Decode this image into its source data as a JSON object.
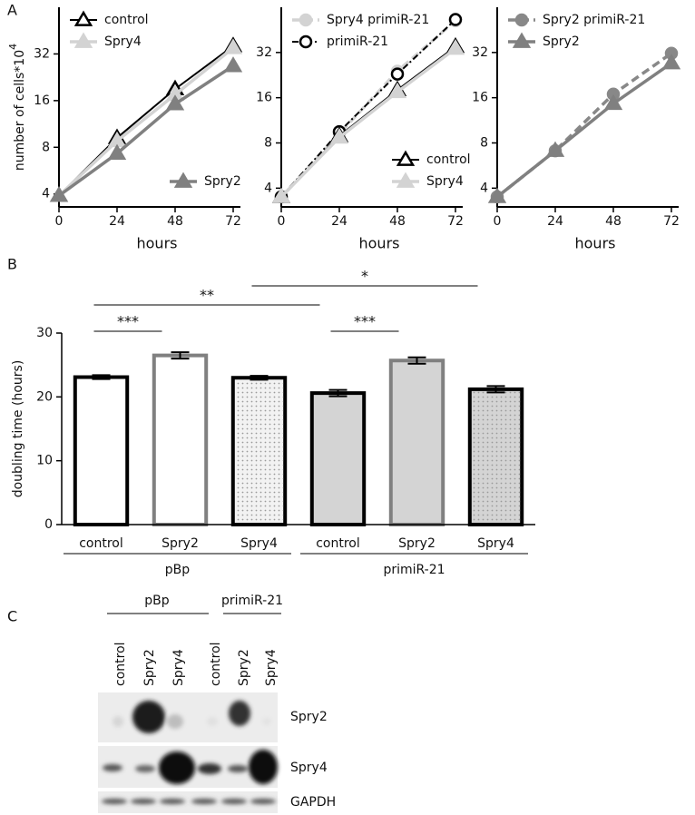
{
  "panel_labels": [
    "A",
    "B",
    "C"
  ],
  "chart_data": [
    {
      "type": "line",
      "x": [
        0,
        24,
        48,
        72
      ],
      "xlim": [
        0,
        75
      ],
      "xticks": [
        0,
        24,
        48,
        72
      ],
      "xlabel": "hours",
      "ylabel": "number of cells*10",
      "ylabel_superscript": "4",
      "yscale": "log",
      "ylim": [
        3.3,
        64
      ],
      "yticks": [
        4,
        8,
        16,
        32
      ],
      "series": [
        {
          "name": "control",
          "color": "#000000",
          "marker": "triangle",
          "filled": false,
          "linestyle": "solid",
          "legend": "upper left",
          "values": [
            3.9,
            9.2,
            19,
            36
          ]
        },
        {
          "name": "Spry4",
          "color": "#d3d3d3",
          "marker": "triangle",
          "filled": true,
          "linestyle": "solid",
          "legend": "upper left",
          "values": [
            3.9,
            8.8,
            17.5,
            35
          ]
        },
        {
          "name": "Spry2",
          "color": "#808080",
          "marker": "triangle",
          "filled": true,
          "linestyle": "solid",
          "legend": "lower right",
          "values": [
            3.9,
            7.3,
            15.2,
            26.8
          ]
        }
      ]
    },
    {
      "type": "line",
      "x": [
        0,
        24,
        48,
        72
      ],
      "xlim": [
        0,
        75
      ],
      "xticks": [
        0,
        24,
        48,
        72
      ],
      "xlabel": "hours",
      "yscale": "log",
      "ylim": [
        3,
        64
      ],
      "yticks": [
        4,
        8,
        16,
        32
      ],
      "series": [
        {
          "name": "Spry4 primiR-21",
          "color": "#d3d3d3",
          "marker": "circle",
          "filled": true,
          "linestyle": "dashed",
          "legend": "upper left",
          "values": [
            3.5,
            9.2,
            24,
            52
          ]
        },
        {
          "name": "primiR-21",
          "color": "#000000",
          "marker": "circle",
          "filled": false,
          "linestyle": "dashdot",
          "legend": "upper left",
          "values": [
            3.5,
            9.5,
            23,
            53
          ]
        },
        {
          "name": "control",
          "color": "#000000",
          "marker": "triangle",
          "filled": false,
          "linestyle": "solid",
          "legend": "lower right",
          "values": [
            3.5,
            8.9,
            18,
            35
          ]
        },
        {
          "name": "Spry4",
          "color": "#d3d3d3",
          "marker": "triangle",
          "filled": true,
          "linestyle": "solid",
          "legend": "lower right",
          "values": [
            3.5,
            8.7,
            17.5,
            34
          ]
        }
      ]
    },
    {
      "type": "line",
      "x": [
        0,
        24,
        48,
        72
      ],
      "xlim": [
        0,
        75
      ],
      "xticks": [
        0,
        24,
        48,
        72
      ],
      "xlabel": "hours",
      "yscale": "log",
      "ylim": [
        3,
        64
      ],
      "yticks": [
        4,
        8,
        16,
        32
      ],
      "series": [
        {
          "name": "Spry2 primiR-21",
          "color": "#888888",
          "marker": "circle",
          "filled": true,
          "linestyle": "dashed",
          "legend": "upper left",
          "values": [
            3.5,
            7.1,
            16.9,
            31.6
          ]
        },
        {
          "name": "Spry2",
          "color": "#808080",
          "marker": "triangle",
          "filled": true,
          "linestyle": "solid",
          "legend": "upper left",
          "values": [
            3.5,
            7.1,
            14.6,
            27.2
          ]
        }
      ]
    },
    {
      "type": "bar",
      "categories": [
        "control",
        "Spry2",
        "Spry4",
        "control",
        "Spry2",
        "Spry4"
      ],
      "groups": [
        "pBp",
        "primiR-21"
      ],
      "values": [
        23.1,
        26.5,
        23.0,
        20.6,
        25.7,
        21.2
      ],
      "errors": [
        0.3,
        0.5,
        0.3,
        0.5,
        0.5,
        0.5
      ],
      "colors": [
        "#ffffff",
        "#ffffff",
        "#f2f2f2",
        "#d4d4d4",
        "#d4d4d4",
        "#d4d4d4"
      ],
      "edgecolors": [
        "#000000",
        "#808080",
        "#000000",
        "#000000",
        "#808080",
        "#000000"
      ],
      "patterns": [
        "none",
        "none",
        "dots",
        "none",
        "none",
        "dots"
      ],
      "ylabel": "doubling time (hours)",
      "ylim": [
        0,
        30
      ],
      "yticks": [
        0,
        10,
        20,
        30
      ],
      "annotations": [
        {
          "text": "***",
          "start": 0,
          "end": 1
        },
        {
          "text": "***",
          "start": 3,
          "end": 4
        },
        {
          "text": "**",
          "start": 0,
          "end": 3
        },
        {
          "text": "*",
          "start": 2,
          "end": 5
        }
      ]
    }
  ],
  "blot": {
    "groups": [
      "pBp",
      "primiR-21"
    ],
    "lanes": [
      "control",
      "Spry2",
      "Spry4",
      "control",
      "Spry2",
      "Spry4"
    ],
    "bands": [
      "Spry2",
      "Spry4",
      "GAPDH"
    ]
  }
}
